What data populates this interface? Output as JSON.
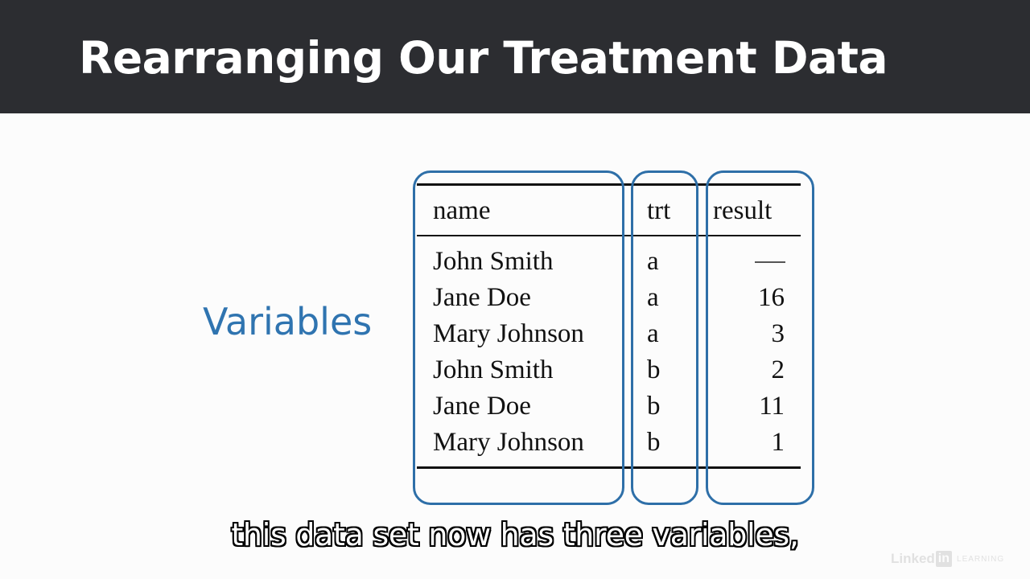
{
  "slide": {
    "title": "Rearranging Our Treatment Data",
    "side_label": "Variables"
  },
  "table": {
    "headers": [
      "name",
      "trt",
      "result"
    ],
    "rows": [
      {
        "name": "John Smith",
        "trt": "a",
        "result": "—"
      },
      {
        "name": "Jane Doe",
        "trt": "a",
        "result": "16"
      },
      {
        "name": "Mary Johnson",
        "trt": "a",
        "result": "3"
      },
      {
        "name": "John Smith",
        "trt": "b",
        "result": "2"
      },
      {
        "name": "Jane Doe",
        "trt": "b",
        "result": "11"
      },
      {
        "name": "Mary Johnson",
        "trt": "b",
        "result": "1"
      }
    ]
  },
  "caption": "this data set now has three variables,",
  "brand": {
    "linked": "Linked",
    "in": "in",
    "learning": "LEARNING"
  },
  "colors": {
    "header_bg": "#2c2d31",
    "accent": "#2f74b0",
    "outline": "#2e6fa8"
  }
}
